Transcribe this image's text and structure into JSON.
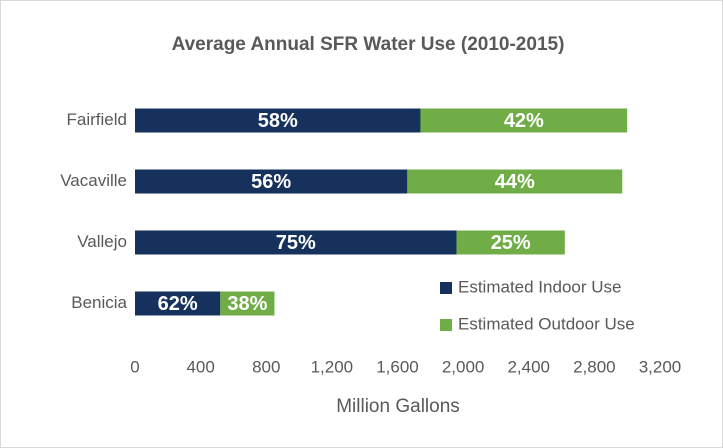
{
  "chart_data": {
    "type": "stacked-bar-horizontal",
    "title": "Average Annual SFR Water Use (2010-2015)",
    "x_label": "Million Gallons",
    "categories": [
      "Fairfield",
      "Vacaville",
      "Vallejo",
      "Benicia"
    ],
    "series": [
      {
        "name": "Estimated Indoor Use",
        "color": "#16325c",
        "values": [
          1740,
          1660,
          1960,
          520
        ],
        "value_labels": [
          "58%",
          "56%",
          "75%",
          "62%"
        ]
      },
      {
        "name": "Estimated Outdoor Use",
        "color": "#70ad47",
        "values": [
          1260,
          1310,
          660,
          330
        ],
        "value_labels": [
          "42%",
          "44%",
          "25%",
          "38%"
        ]
      }
    ],
    "xlim": [
      0,
      3200
    ],
    "xticks": [
      0,
      400,
      800,
      {
        "value": 1200,
        "label": "1,200"
      },
      {
        "value": 1600,
        "label": "1,600"
      },
      {
        "value": 2000,
        "label": "2,000"
      },
      {
        "value": 2400,
        "label": "2,400"
      },
      {
        "value": 2800,
        "label": "2,800"
      },
      {
        "value": 3200,
        "label": "3,200"
      }
    ],
    "grid": false,
    "legend": "right"
  }
}
